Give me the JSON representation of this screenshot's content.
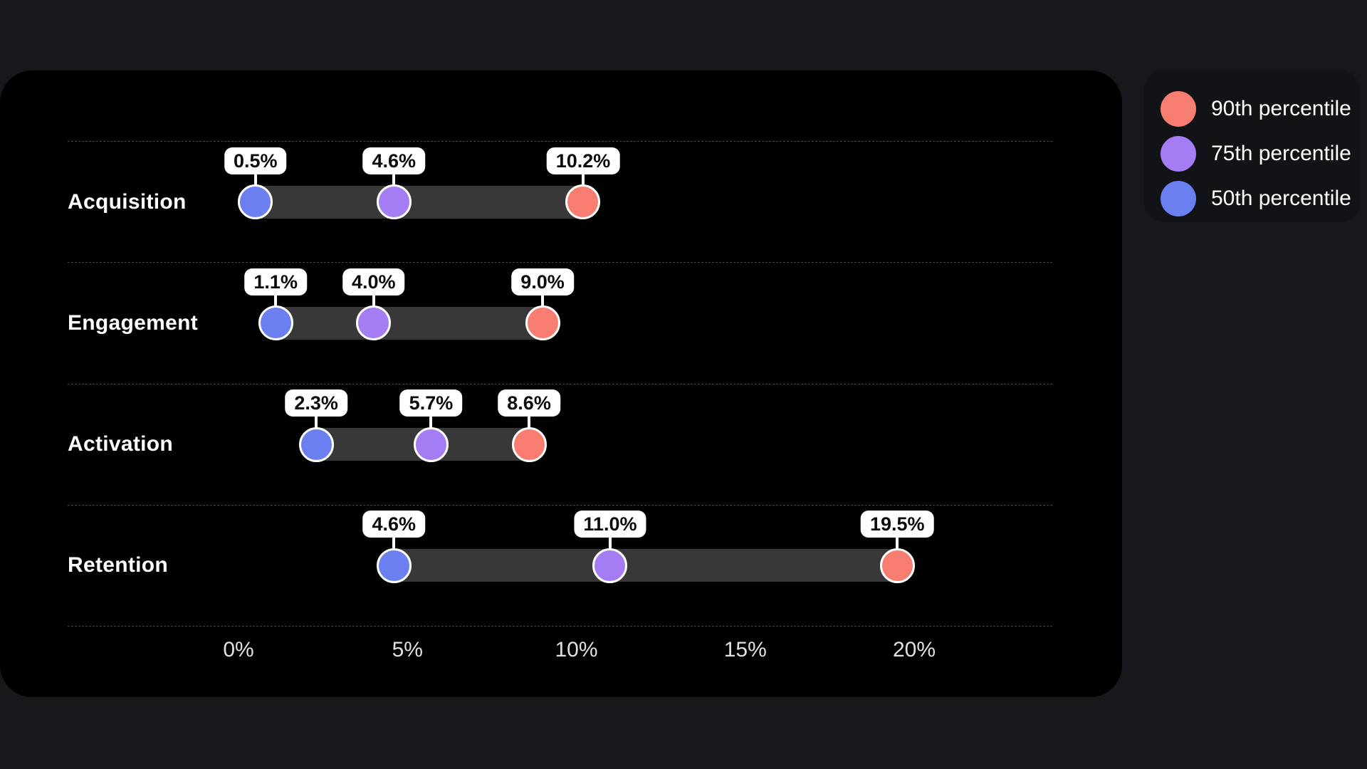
{
  "chart_data": {
    "type": "dumbbell",
    "title": "",
    "categories": [
      "Acquisition",
      "Engagement",
      "Activation",
      "Retention"
    ],
    "series": [
      {
        "name": "50th percentile",
        "color": "#6b7ff0",
        "values": [
          0.5,
          1.1,
          2.3,
          4.6
        ]
      },
      {
        "name": "75th percentile",
        "color": "#a47cf3",
        "values": [
          4.6,
          4.0,
          5.7,
          11.0
        ]
      },
      {
        "name": "90th percentile",
        "color": "#f87d71",
        "values": [
          10.2,
          9.0,
          8.6,
          19.5
        ]
      }
    ],
    "value_labels": [
      [
        "0.5%",
        "4.6%",
        "10.2%"
      ],
      [
        "1.1%",
        "4.0%",
        "9.0%"
      ],
      [
        "2.3%",
        "5.7%",
        "8.6%"
      ],
      [
        "4.6%",
        "11.0%",
        "19.5%"
      ]
    ],
    "x_ticks": [
      {
        "value": 0,
        "label": "0%"
      },
      {
        "value": 5,
        "label": "5%"
      },
      {
        "value": 10,
        "label": "10%"
      },
      {
        "value": 15,
        "label": "15%"
      },
      {
        "value": 20,
        "label": "20%"
      }
    ],
    "xlim": [
      0,
      20
    ],
    "grid": "dashed-horizontal-lines",
    "legend_position": "top-right"
  },
  "legend": {
    "items": [
      {
        "label": "90th percentile",
        "color": "#f87d71"
      },
      {
        "label": "75th percentile",
        "color": "#a47cf3"
      },
      {
        "label": "50th percentile",
        "color": "#6b7ff0"
      }
    ]
  },
  "colors": {
    "page_bg": "#16181c",
    "panel_bg": "#000000",
    "legend_bg": "#121317",
    "track": "#383838",
    "grid": "#43464b",
    "axis_text": "#e0e1e3",
    "badge_bg": "#ffffff",
    "badge_text": "#0b0b0c",
    "p50": "#6b7ff0",
    "p75": "#a47cf3",
    "p90": "#f87d71"
  }
}
